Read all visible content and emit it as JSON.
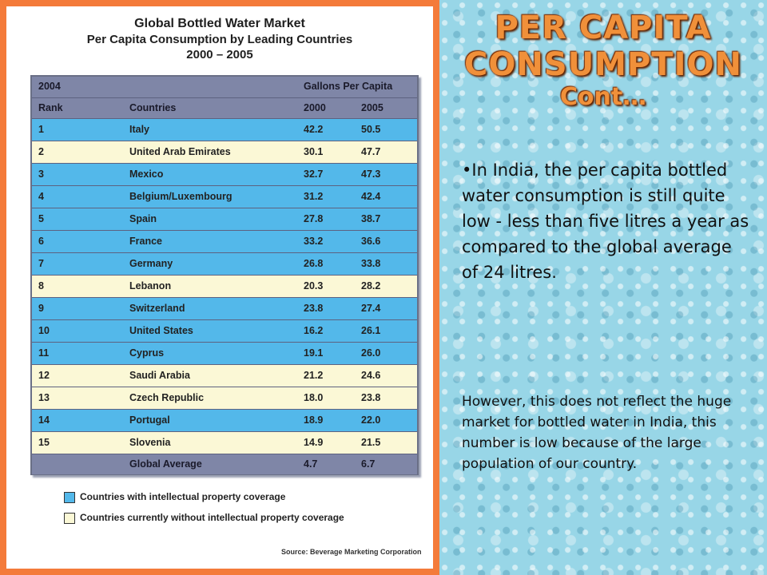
{
  "table": {
    "title_line1": "Global Bottled Water Market",
    "title_line2": "Per Capita Consumption by Leading Countries",
    "title_line3": "2000 – 2005",
    "header_row1": {
      "year": "2004",
      "unit": "Gallons Per Capita"
    },
    "header_row2": {
      "rank": "Rank",
      "countries": "Countries",
      "y2000": "2000",
      "y2005": "2005"
    },
    "rows": [
      {
        "rank": "1",
        "country": "Italy",
        "y2000": "42.2",
        "y2005": "50.5",
        "ip": true
      },
      {
        "rank": "2",
        "country": "United Arab Emirates",
        "y2000": "30.1",
        "y2005": "47.7",
        "ip": false
      },
      {
        "rank": "3",
        "country": "Mexico",
        "y2000": "32.7",
        "y2005": "47.3",
        "ip": true
      },
      {
        "rank": "4",
        "country": "Belgium/Luxembourg",
        "y2000": "31.2",
        "y2005": "42.4",
        "ip": true
      },
      {
        "rank": "5",
        "country": "Spain",
        "y2000": "27.8",
        "y2005": "38.7",
        "ip": true
      },
      {
        "rank": "6",
        "country": "France",
        "y2000": "33.2",
        "y2005": "36.6",
        "ip": true
      },
      {
        "rank": "7",
        "country": "Germany",
        "y2000": "26.8",
        "y2005": "33.8",
        "ip": true
      },
      {
        "rank": "8",
        "country": "Lebanon",
        "y2000": "20.3",
        "y2005": "28.2",
        "ip": false
      },
      {
        "rank": "9",
        "country": "Switzerland",
        "y2000": "23.8",
        "y2005": "27.4",
        "ip": true
      },
      {
        "rank": "10",
        "country": "United States",
        "y2000": "16.2",
        "y2005": "26.1",
        "ip": true
      },
      {
        "rank": "11",
        "country": "Cyprus",
        "y2000": "19.1",
        "y2005": "26.0",
        "ip": true
      },
      {
        "rank": "12",
        "country": "Saudi Arabia",
        "y2000": "21.2",
        "y2005": "24.6",
        "ip": false
      },
      {
        "rank": "13",
        "country": "Czech Republic",
        "y2000": "18.0",
        "y2005": "23.8",
        "ip": false
      },
      {
        "rank": "14",
        "country": "Portugal",
        "y2000": "18.9",
        "y2005": "22.0",
        "ip": true
      },
      {
        "rank": "15",
        "country": "Slovenia",
        "y2000": "14.9",
        "y2005": "21.5",
        "ip": false
      }
    ],
    "average_row": {
      "label": "Global Average",
      "y2000": "4.7",
      "y2005": "6.7"
    },
    "legend": [
      {
        "label": "Countries with intellectual property coverage",
        "color": "#53b8ea"
      },
      {
        "label": "Countries currently without intellectual property coverage",
        "color": "#fbf8d6"
      }
    ],
    "source": "Source: Beverage Marketing Corporation"
  },
  "slide": {
    "title_line1": "PER CAPITA",
    "title_line2": "CONSUMPTION",
    "title_line3": "Cont…",
    "bullet": "In India, the per capita bottled water consumption is still quite low - less than five litres a year as compared to the global average of 24 litres.",
    "note": "However, this does not reflect the huge market for bottled water in India, this number is low  because of the large population of our country."
  },
  "colors": {
    "frame": "#f47b3a",
    "ip_blue": "#53b8ea",
    "no_ip_cream": "#fbf8d6",
    "header": "#7f86a7",
    "title_orange": "#f0903a",
    "water_bg": "#98d6e7"
  }
}
